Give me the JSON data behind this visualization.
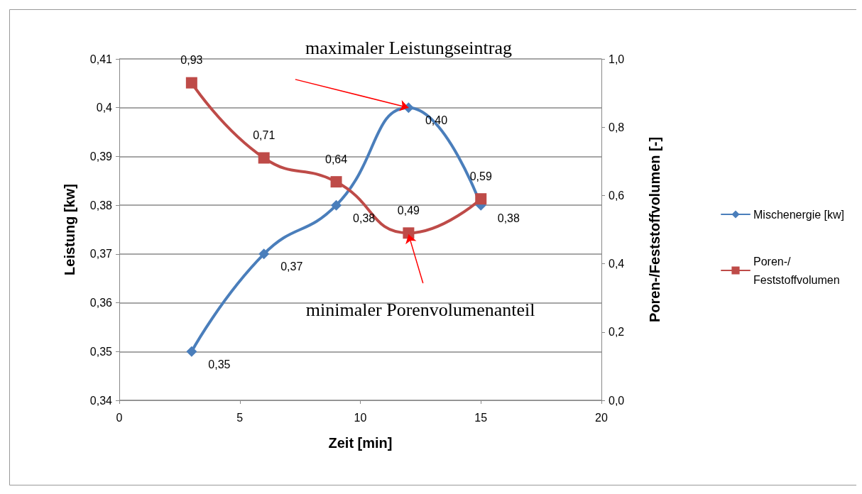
{
  "chart_data": {
    "type": "line",
    "xlabel": "Zeit [min]",
    "ylabel": "Leistung [kw]",
    "y2label": "Poren-/Feststoffvolumen [-]",
    "x": [
      3,
      6,
      9,
      12,
      15
    ],
    "series": [
      {
        "name": "Mischenergie [kw]",
        "color": "#4a7ebb",
        "marker": "diamond",
        "values": [
          0.35,
          0.37,
          0.38,
          0.4,
          0.38
        ],
        "value_labels": [
          "0,35",
          "0,37",
          "0,38",
          "0,40",
          "0,38"
        ]
      },
      {
        "name": "Poren-/Feststoffvolumen",
        "color": "#be4b48",
        "marker": "square",
        "axis": "y2",
        "values": [
          0.93,
          0.71,
          0.64,
          0.49,
          0.59
        ],
        "value_labels": [
          "0,93",
          "0,71",
          "0,64",
          "0,49",
          "0,59"
        ]
      }
    ],
    "xlim": [
      0,
      20
    ],
    "xticks": [
      0,
      5,
      10,
      15,
      20
    ],
    "ylim": [
      0.34,
      0.41
    ],
    "yticks": [
      {
        "value": 0.34,
        "label": "0,34"
      },
      {
        "value": 0.35,
        "label": "0,35"
      },
      {
        "value": 0.36,
        "label": "0,36"
      },
      {
        "value": 0.37,
        "label": "0,37"
      },
      {
        "value": 0.38,
        "label": "0,38"
      },
      {
        "value": 0.39,
        "label": "0,39"
      },
      {
        "value": 0.4,
        "label": "0,4"
      },
      {
        "value": 0.41,
        "label": "0,41"
      }
    ],
    "y2lim": [
      0,
      1
    ],
    "y2ticks": [
      {
        "value": 0,
        "label": "0,0"
      },
      {
        "value": 0.2,
        "label": "0,2"
      },
      {
        "value": 0.4,
        "label": "0,4"
      },
      {
        "value": 0.6,
        "label": "0,6"
      },
      {
        "value": 0.8,
        "label": "0,8"
      },
      {
        "value": 1,
        "label": "1,0"
      }
    ],
    "grid": "y",
    "legend": "right",
    "line_style": "solid",
    "annotations": [
      {
        "text": "maximaler Leistungseintrag",
        "x": 12,
        "y": 0.4
      },
      {
        "text": "minimaler Porenvolumenanteil",
        "x": 12,
        "y": 0.374
      }
    ]
  }
}
